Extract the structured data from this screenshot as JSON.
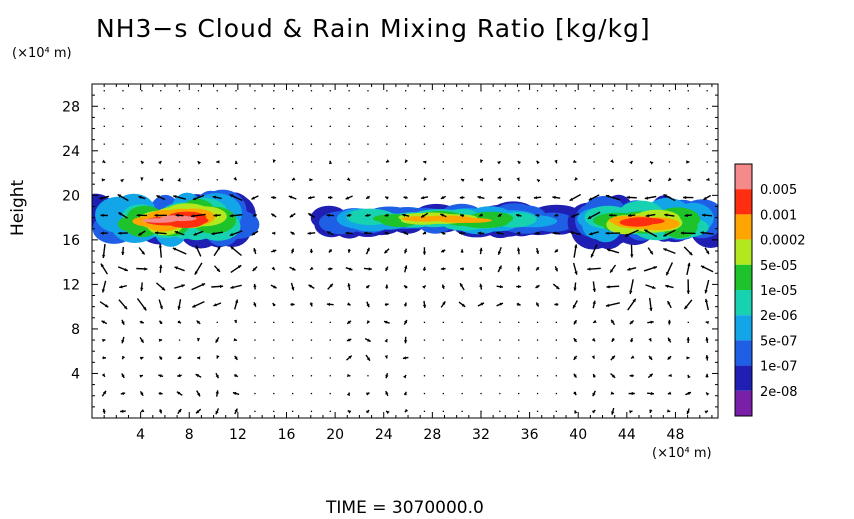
{
  "title": "NH3−s Cloud & Rain Mixing Ratio [kg/kg]",
  "y_unit": "(×10⁴ m)",
  "x_unit": "(×10⁴ m)",
  "ylabel": "Height",
  "time_label": "TIME",
  "time_eq": "=",
  "time_value": "3070000.0",
  "chart_data": {
    "type": "heatmap",
    "title": "NH3−s Cloud & Rain Mixing Ratio [kg/kg]",
    "xlabel": "",
    "ylabel": "Height",
    "x_unit": "(×10⁴ m)",
    "y_unit": "(×10⁴ m)",
    "xlim": [
      0,
      51.5
    ],
    "ylim": [
      0,
      30
    ],
    "xticks": [
      4,
      8,
      12,
      16,
      20,
      24,
      28,
      32,
      36,
      40,
      44,
      48
    ],
    "yticks": [
      4,
      8,
      12,
      16,
      20,
      24,
      28
    ],
    "colorbar": {
      "levels": [
        "2e-08",
        "1e-07",
        "5e-07",
        "2e-06",
        "1e-05",
        "5e-05",
        "0.0002",
        "0.001",
        "0.005"
      ],
      "colors": [
        "#7a1fa8",
        "#1f1fb4",
        "#1e5fe6",
        "#12a6e8",
        "#17d2b0",
        "#1ec22a",
        "#b4e81e",
        "#ffa500",
        "#ff2e10",
        "#f48a8a"
      ]
    },
    "cloud_layers": [
      {
        "x_range": [
          0,
          13
        ],
        "y_range": [
          15.5,
          20.2
        ],
        "max_level": "0.005"
      },
      {
        "x_range": [
          18,
          40
        ],
        "y_range": [
          16.5,
          19.2
        ],
        "max_level": "0.0002"
      },
      {
        "x_range": [
          40,
          51.5
        ],
        "y_range": [
          15.5,
          19.8
        ],
        "max_level": "0.001"
      }
    ],
    "wind_vectors": "velocity arrows over the domain; strongest near cloud layers and below x=0..12 and x=40..51"
  }
}
